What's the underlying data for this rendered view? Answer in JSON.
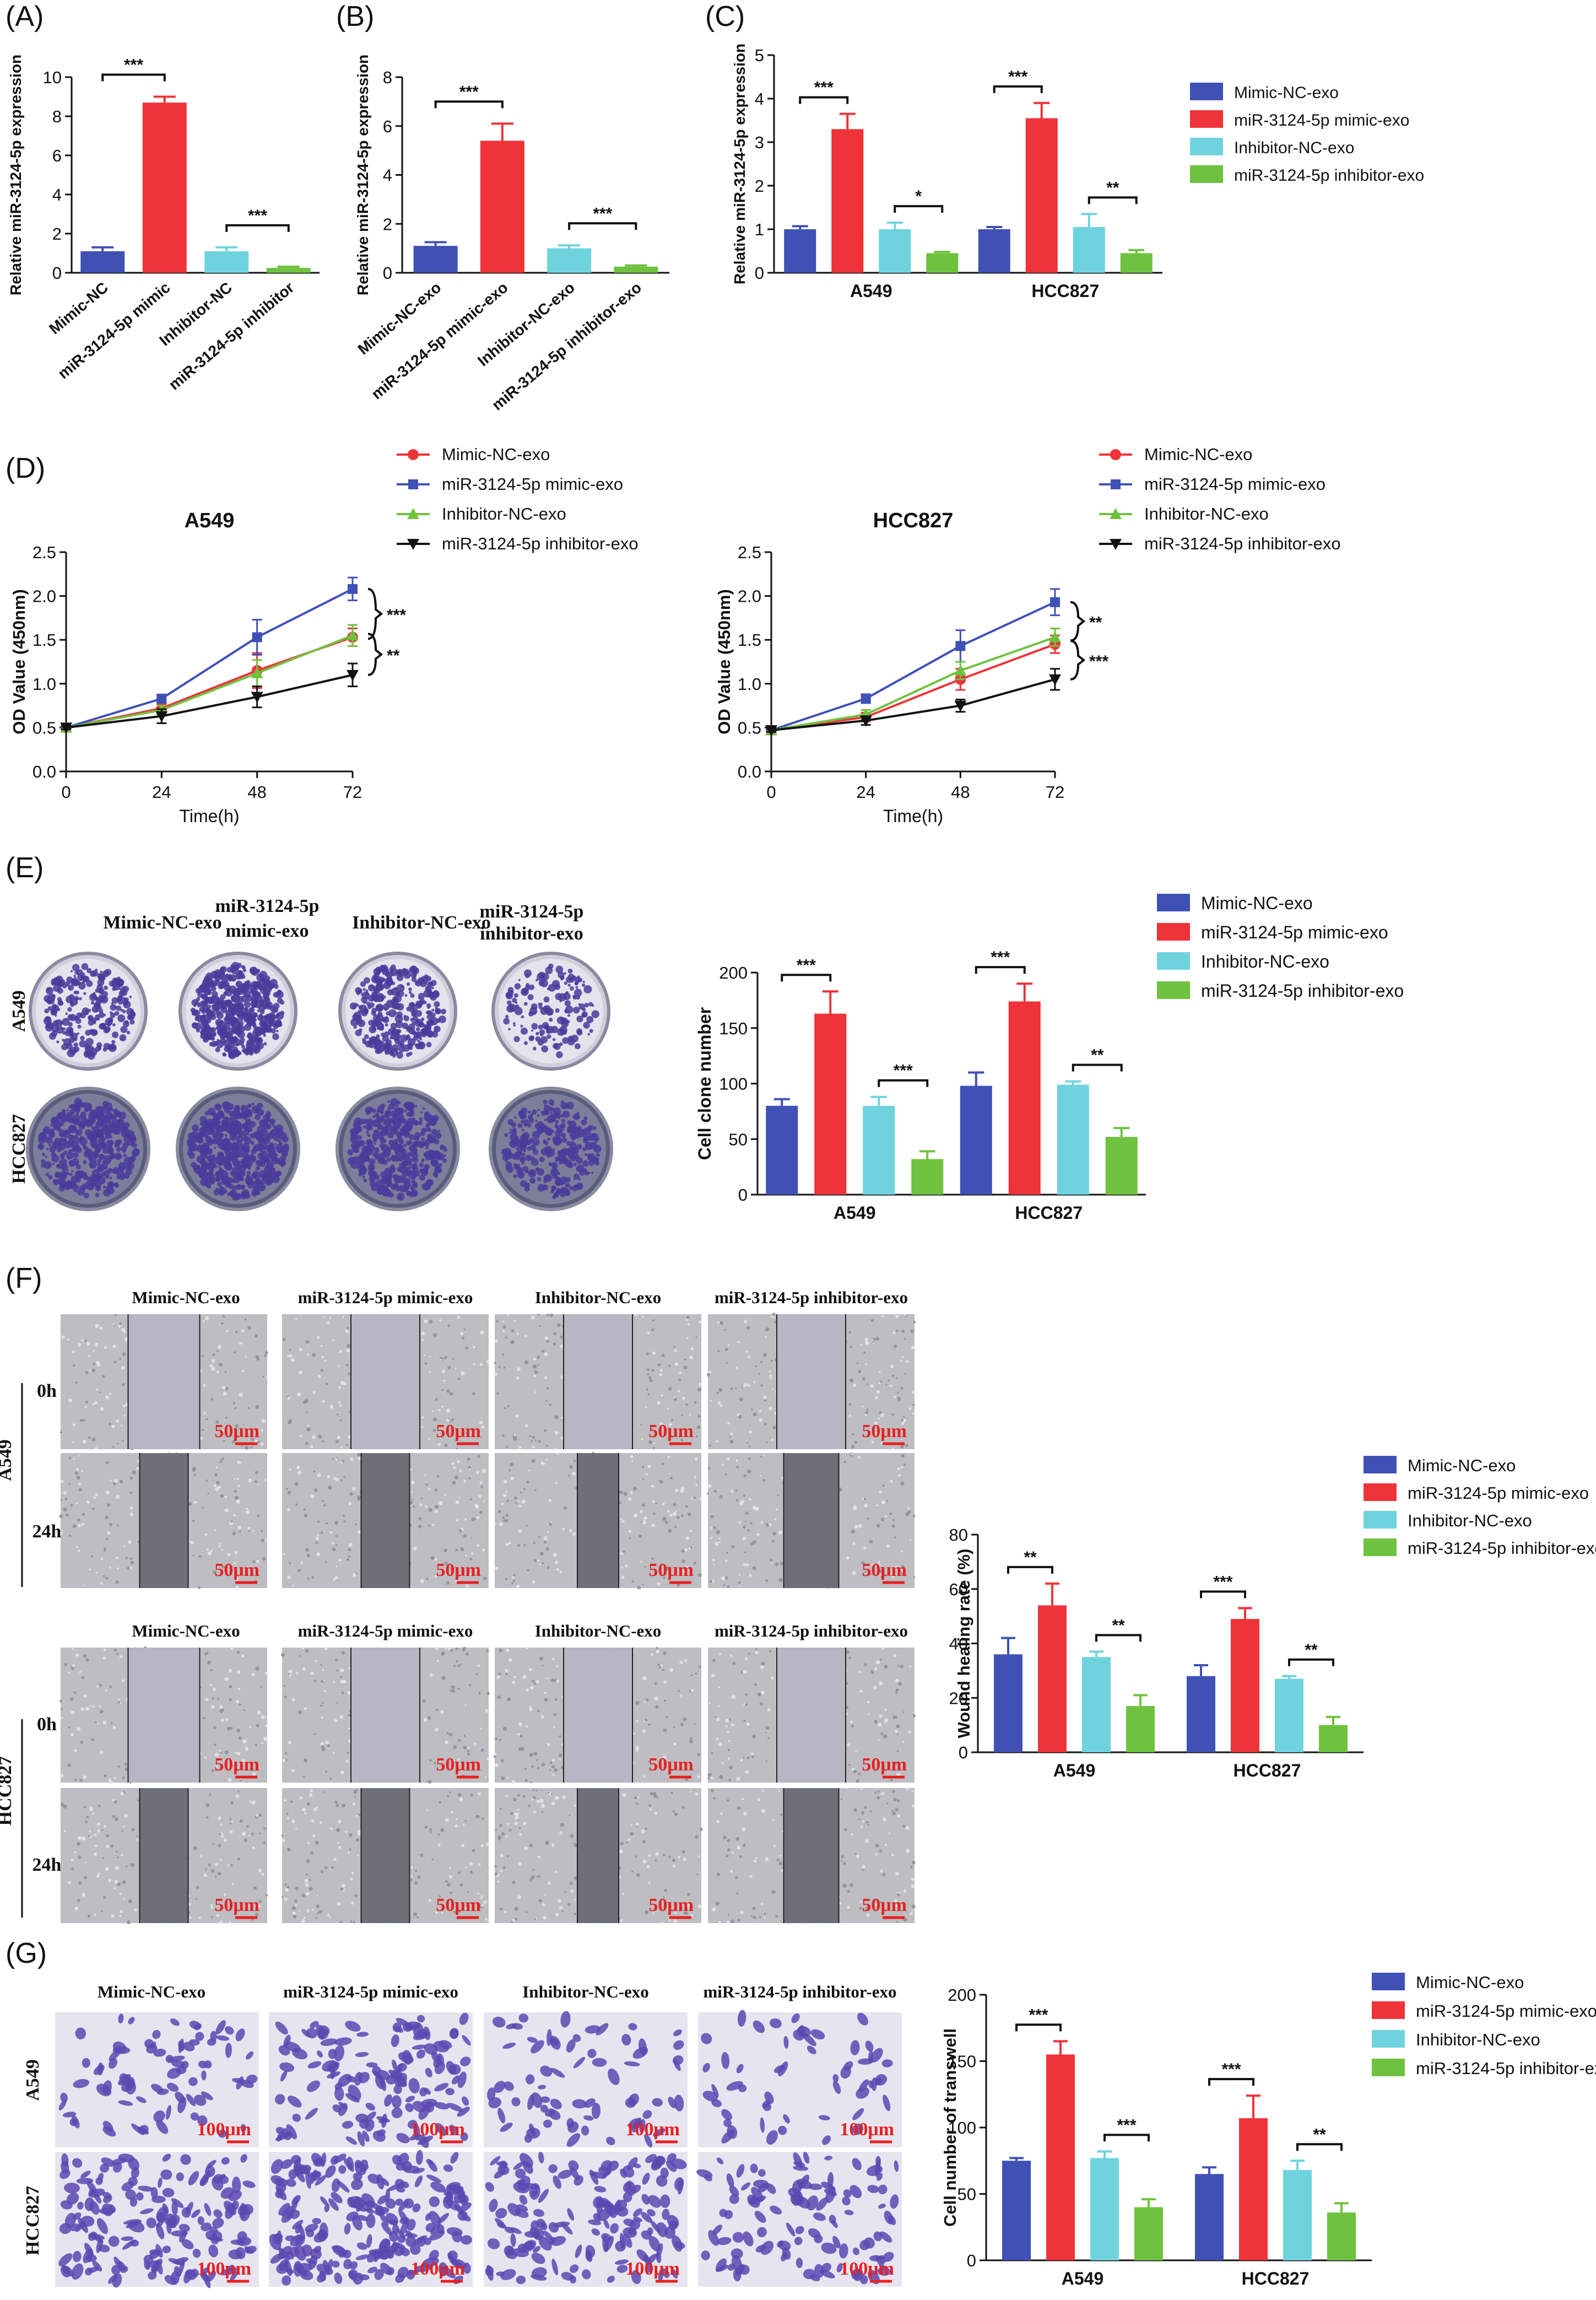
{
  "colors": {
    "blue": "#3f51b5",
    "red": "#ee3339",
    "cyan": "#6fd3de",
    "green": "#6fc23f",
    "black": "#111111",
    "scale_red": "#e8201f",
    "violet": "#4b3b9b"
  },
  "panels": {
    "A": {
      "label": "(A)"
    },
    "B": {
      "label": "(B)"
    },
    "C": {
      "label": "(C)"
    },
    "D": {
      "label": "(D)"
    },
    "E": {
      "label": "(E)"
    },
    "F": {
      "label": "(F)"
    },
    "G": {
      "label": "(G)"
    }
  },
  "legend": {
    "four": [
      "Mimic-NC-exo",
      "miR-3124-5p mimic-exo",
      "Inhibitor-NC-exo",
      "miR-3124-5p inhibitor-exo"
    ]
  },
  "photo_headers": {
    "E": [
      "Mimic-NC-exo",
      "miR-3124-5p",
      "mimic-exo",
      "Inhibitor-NC-exo",
      "miR-3124-5p",
      "inhibitor-exo"
    ],
    "F_top": [
      "Mimic-NC-exo",
      "miR-3124-5p mimic-exo",
      "Inhibitor-NC-exo",
      "miR-3124-5p inhibitor-exo"
    ],
    "F_bottom": [
      "Mimic-NC-exo",
      "miR-3124-5p mimic-exo",
      "Inhibitor-NC-exo",
      "miR-3124-5p inhibitor-exo"
    ],
    "G": [
      "Mimic-NC-exo",
      "miR-3124-5p mimic-exo",
      "Inhibitor-NC-exo",
      "miR-3124-5p inhibitor-exo"
    ]
  },
  "row_labels": {
    "E": [
      "A549",
      "HCC827"
    ],
    "F_cells": [
      "A549",
      "HCC827"
    ],
    "F_times": [
      "0h",
      "24h"
    ],
    "G": [
      "A549",
      "HCC827"
    ]
  },
  "scale_bars": {
    "F": "50μm",
    "G": "100μm"
  },
  "chart_data": [
    {
      "id": "A",
      "type": "bar",
      "categories": [
        "Mimic-NC",
        "miR-3124-5p mimic",
        "Inhibitor-NC",
        "miR-3124-5p inhibitor"
      ],
      "values": [
        1.1,
        8.7,
        1.1,
        0.25
      ],
      "errors": [
        0.2,
        0.3,
        0.2,
        0.06
      ],
      "ylabel": "Relative miR-3124-5p expression",
      "ylim": [
        0,
        10
      ],
      "yticks": [
        0,
        2,
        4,
        6,
        8,
        10
      ],
      "significance": [
        {
          "from": 0,
          "to": 1,
          "label": "***"
        },
        {
          "from": 2,
          "to": 3,
          "label": "***"
        }
      ]
    },
    {
      "id": "B",
      "type": "bar",
      "categories": [
        "Mimic-NC-exo",
        "miR-3124-5p mimic-exo",
        "Inhibitor-NC-exo",
        "miR-3124-5p inhibitor-exo"
      ],
      "values": [
        1.1,
        5.4,
        1.0,
        0.25
      ],
      "errors": [
        0.15,
        0.7,
        0.12,
        0.05
      ],
      "ylabel": "Relative miR-3124-5p expression",
      "ylim": [
        0,
        8
      ],
      "yticks": [
        0,
        2,
        4,
        6,
        8
      ],
      "significance": [
        {
          "from": 0,
          "to": 1,
          "label": "***"
        },
        {
          "from": 2,
          "to": 3,
          "label": "***"
        }
      ]
    },
    {
      "id": "C",
      "type": "bar",
      "groups": [
        "A549",
        "HCC827"
      ],
      "series": [
        {
          "name": "Mimic-NC-exo",
          "values": [
            1.0,
            1.0
          ],
          "errors": [
            0.07,
            0.05
          ]
        },
        {
          "name": "miR-3124-5p mimic-exo",
          "values": [
            3.3,
            3.55
          ],
          "errors": [
            0.35,
            0.35
          ]
        },
        {
          "name": "Inhibitor-NC-exo",
          "values": [
            1.0,
            1.05
          ],
          "errors": [
            0.15,
            0.3
          ]
        },
        {
          "name": "miR-3124-5p inhibitor-exo",
          "values": [
            0.45,
            0.45
          ],
          "errors": [
            0.03,
            0.07
          ]
        }
      ],
      "ylabel": "Relative miR-3124-5p expression",
      "ylim": [
        0,
        5
      ],
      "yticks": [
        0,
        1,
        2,
        3,
        4,
        5
      ],
      "significance": [
        {
          "group": 0,
          "from": 0,
          "to": 1,
          "label": "***"
        },
        {
          "group": 0,
          "from": 2,
          "to": 3,
          "label": "*"
        },
        {
          "group": 1,
          "from": 0,
          "to": 1,
          "label": "***"
        },
        {
          "group": 1,
          "from": 2,
          "to": 3,
          "label": "**"
        }
      ]
    },
    {
      "id": "D1",
      "type": "line",
      "title": "A549",
      "x": [
        0,
        24,
        48,
        72
      ],
      "series": [
        {
          "name": "Mimic-NC-exo",
          "values": [
            0.5,
            0.72,
            1.15,
            1.53
          ],
          "errors": [
            0.02,
            0.05,
            0.2,
            0.1
          ]
        },
        {
          "name": "miR-3124-5p mimic-exo",
          "values": [
            0.5,
            0.83,
            1.53,
            2.08
          ],
          "errors": [
            0.02,
            0.04,
            0.2,
            0.13
          ]
        },
        {
          "name": "Inhibitor-NC-exo",
          "values": [
            0.5,
            0.7,
            1.12,
            1.55
          ],
          "errors": [
            0.02,
            0.05,
            0.15,
            0.12
          ]
        },
        {
          "name": "miR-3124-5p inhibitor-exo",
          "values": [
            0.5,
            0.63,
            0.85,
            1.1
          ],
          "errors": [
            0.02,
            0.08,
            0.12,
            0.13
          ]
        }
      ],
      "xlabel": "Time(h)",
      "ylabel": "OD Value (450nm)",
      "xticks": [
        0,
        24,
        48,
        72
      ],
      "ylim": [
        0,
        2.5
      ],
      "yticks": [
        0.0,
        0.5,
        1.0,
        1.5,
        2.0,
        2.5
      ],
      "significance": [
        "***",
        "**"
      ]
    },
    {
      "id": "D2",
      "type": "line",
      "title": "HCC827",
      "x": [
        0,
        24,
        48,
        72
      ],
      "series": [
        {
          "name": "Mimic-NC-exo",
          "values": [
            0.47,
            0.62,
            1.05,
            1.45
          ],
          "errors": [
            0.02,
            0.05,
            0.12,
            0.1
          ]
        },
        {
          "name": "miR-3124-5p mimic-exo",
          "values": [
            0.47,
            0.83,
            1.43,
            1.93
          ],
          "errors": [
            0.02,
            0.05,
            0.18,
            0.15
          ]
        },
        {
          "name": "Inhibitor-NC-exo",
          "values": [
            0.47,
            0.65,
            1.15,
            1.53
          ],
          "errors": [
            0.02,
            0.05,
            0.1,
            0.1
          ]
        },
        {
          "name": "miR-3124-5p inhibitor-exo",
          "values": [
            0.47,
            0.58,
            0.75,
            1.05
          ],
          "errors": [
            0.02,
            0.05,
            0.07,
            0.12
          ]
        }
      ],
      "xlabel": "Time(h)",
      "ylabel": "OD Value (450nm)",
      "xticks": [
        0,
        24,
        48,
        72
      ],
      "ylim": [
        0,
        2.5
      ],
      "yticks": [
        0.0,
        0.5,
        1.0,
        1.5,
        2.0,
        2.5
      ],
      "significance": [
        "**",
        "***"
      ]
    },
    {
      "id": "E",
      "type": "bar",
      "groups": [
        "A549",
        "HCC827"
      ],
      "series": [
        {
          "name": "Mimic-NC-exo",
          "values": [
            80,
            98
          ],
          "errors": [
            6,
            12
          ]
        },
        {
          "name": "miR-3124-5p mimic-exo",
          "values": [
            163,
            174
          ],
          "errors": [
            20,
            16
          ]
        },
        {
          "name": "Inhibitor-NC-exo",
          "values": [
            80,
            99
          ],
          "errors": [
            8,
            3
          ]
        },
        {
          "name": "miR-3124-5p inhibitor-exo",
          "values": [
            32,
            52
          ],
          "errors": [
            7,
            8
          ]
        }
      ],
      "ylabel": "Cell clone number",
      "ylim": [
        0,
        200
      ],
      "yticks": [
        0,
        50,
        100,
        150,
        200
      ],
      "significance": [
        {
          "group": 0,
          "from": 0,
          "to": 1,
          "label": "***"
        },
        {
          "group": 0,
          "from": 2,
          "to": 3,
          "label": "***"
        },
        {
          "group": 1,
          "from": 0,
          "to": 1,
          "label": "***"
        },
        {
          "group": 1,
          "from": 2,
          "to": 3,
          "label": "**"
        }
      ]
    },
    {
      "id": "F",
      "type": "bar",
      "groups": [
        "A549",
        "HCC827"
      ],
      "series": [
        {
          "name": "Mimic-NC-exo",
          "values": [
            36,
            28
          ],
          "errors": [
            6,
            4
          ]
        },
        {
          "name": "miR-3124-5p mimic-exo",
          "values": [
            54,
            49
          ],
          "errors": [
            8,
            4
          ]
        },
        {
          "name": "Inhibitor-NC-exo",
          "values": [
            35,
            27
          ],
          "errors": [
            2,
            1
          ]
        },
        {
          "name": "miR-3124-5p inhibitor-exo",
          "values": [
            17,
            10
          ],
          "errors": [
            4,
            3
          ]
        }
      ],
      "ylabel": "Wound healing rate (%)",
      "ylim": [
        0,
        80
      ],
      "yticks": [
        0,
        20,
        40,
        60,
        80
      ],
      "significance": [
        {
          "group": 0,
          "from": 0,
          "to": 1,
          "label": "**"
        },
        {
          "group": 0,
          "from": 2,
          "to": 3,
          "label": "**"
        },
        {
          "group": 1,
          "from": 0,
          "to": 1,
          "label": "***"
        },
        {
          "group": 1,
          "from": 2,
          "to": 3,
          "label": "**"
        }
      ]
    },
    {
      "id": "G",
      "type": "bar",
      "groups": [
        "A549",
        "HCC827"
      ],
      "series": [
        {
          "name": "Mimic-NC-exo",
          "values": [
            75,
            65
          ],
          "errors": [
            2,
            5
          ]
        },
        {
          "name": "miR-3124-5p mimic-exo",
          "values": [
            155,
            107
          ],
          "errors": [
            10,
            17
          ]
        },
        {
          "name": "Inhibitor-NC-exo",
          "values": [
            77,
            68
          ],
          "errors": [
            5,
            7
          ]
        },
        {
          "name": "miR-3124-5p inhibitor-exo",
          "values": [
            40,
            36
          ],
          "errors": [
            6,
            7
          ]
        }
      ],
      "ylabel": "Cell number of transwell",
      "ylim": [
        0,
        200
      ],
      "yticks": [
        0,
        50,
        100,
        150,
        200
      ],
      "significance": [
        {
          "group": 0,
          "from": 0,
          "to": 1,
          "label": "***"
        },
        {
          "group": 0,
          "from": 2,
          "to": 3,
          "label": "***"
        },
        {
          "group": 1,
          "from": 0,
          "to": 1,
          "label": "***"
        },
        {
          "group": 1,
          "from": 2,
          "to": 3,
          "label": "**"
        }
      ]
    }
  ]
}
